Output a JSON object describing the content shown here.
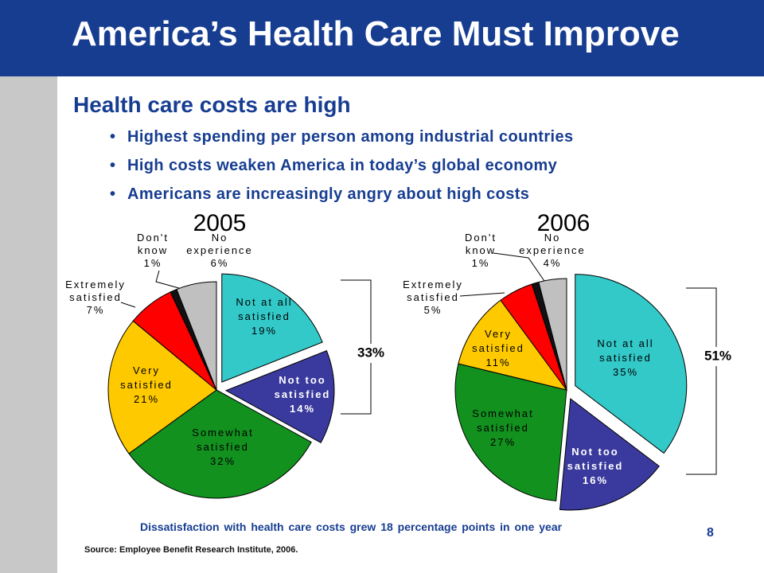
{
  "slide": {
    "title": "America’s Health Care Must Improve",
    "subheading": "Health care costs are high",
    "bullets": [
      "Highest spending per person among industrial countries",
      "High costs weaken America in today’s global economy",
      "Americans are increasingly angry about high costs"
    ],
    "footnote": "Dissatisfaction with health care costs grew 18 percentage points in one year",
    "source": "Source:  Employee Benefit Research Institute, 2006.",
    "page_number": "8",
    "colors": {
      "header": "#173d91",
      "left_band": "#c8c8c8",
      "text_blue": "#173d91"
    }
  },
  "chart_data": [
    {
      "type": "pie",
      "title": "2005",
      "bracket_label": "33%",
      "slices": [
        {
          "label": "Not at all satisfied",
          "label_lines": [
            "Not at all",
            "satisfied"
          ],
          "pct_label": "19%",
          "value": 19,
          "color": "#33c9c9",
          "exploded": true
        },
        {
          "label": "Not too satisfied",
          "label_lines": [
            "Not too",
            "satisfied"
          ],
          "pct_label": "14%",
          "value": 14,
          "color": "#3a3a9e",
          "exploded": true
        },
        {
          "label": "Somewhat satisfied",
          "label_lines": [
            "Somewhat",
            "satisfied"
          ],
          "pct_label": "32%",
          "value": 32,
          "color": "#12911f",
          "exploded": false
        },
        {
          "label": "Very satisfied",
          "label_lines": [
            "Very",
            "satisfied"
          ],
          "pct_label": "21%",
          "value": 21,
          "color": "#ffc900",
          "exploded": false
        },
        {
          "label": "Extremely satisfied",
          "label_lines": [
            "Extremely",
            "satisfied"
          ],
          "pct_label": "7%",
          "value": 7,
          "color": "#ff0000",
          "exploded": false
        },
        {
          "label": "Don't know",
          "label_lines": [
            "Don't",
            "know"
          ],
          "pct_label": "1%",
          "value": 1,
          "color": "#111111",
          "exploded": false
        },
        {
          "label": "No experience",
          "label_lines": [
            "No",
            "experience"
          ],
          "pct_label": "6%",
          "value": 6,
          "color": "#c0c0c0",
          "exploded": false
        }
      ]
    },
    {
      "type": "pie",
      "title": "2006",
      "bracket_label": "51%",
      "slices": [
        {
          "label": "Not at all satisfied",
          "label_lines": [
            "Not at all",
            "satisfied"
          ],
          "pct_label": "35%",
          "value": 35,
          "color": "#33c9c9",
          "exploded": true
        },
        {
          "label": "Not too satisfied",
          "label_lines": [
            "Not too",
            "satisfied"
          ],
          "pct_label": "16%",
          "value": 16,
          "color": "#3a3a9e",
          "exploded": true
        },
        {
          "label": "Somewhat satisfied",
          "label_lines": [
            "Somewhat",
            "satisfied"
          ],
          "pct_label": "27%",
          "value": 27,
          "color": "#12911f",
          "exploded": false
        },
        {
          "label": "Very satisfied",
          "label_lines": [
            "Very",
            "satisfied"
          ],
          "pct_label": "11%",
          "value": 11,
          "color": "#ffc900",
          "exploded": false
        },
        {
          "label": "Extremely satisfied",
          "label_lines": [
            "Extremely",
            "satisfied"
          ],
          "pct_label": "5%",
          "value": 5,
          "color": "#ff0000",
          "exploded": false
        },
        {
          "label": "Don't know",
          "label_lines": [
            "Don't",
            "know"
          ],
          "pct_label": "1%",
          "value": 1,
          "color": "#111111",
          "exploded": false
        },
        {
          "label": "No experience",
          "label_lines": [
            "No",
            "experience"
          ],
          "pct_label": "4%",
          "value": 4,
          "color": "#c0c0c0",
          "exploded": false
        }
      ]
    }
  ]
}
